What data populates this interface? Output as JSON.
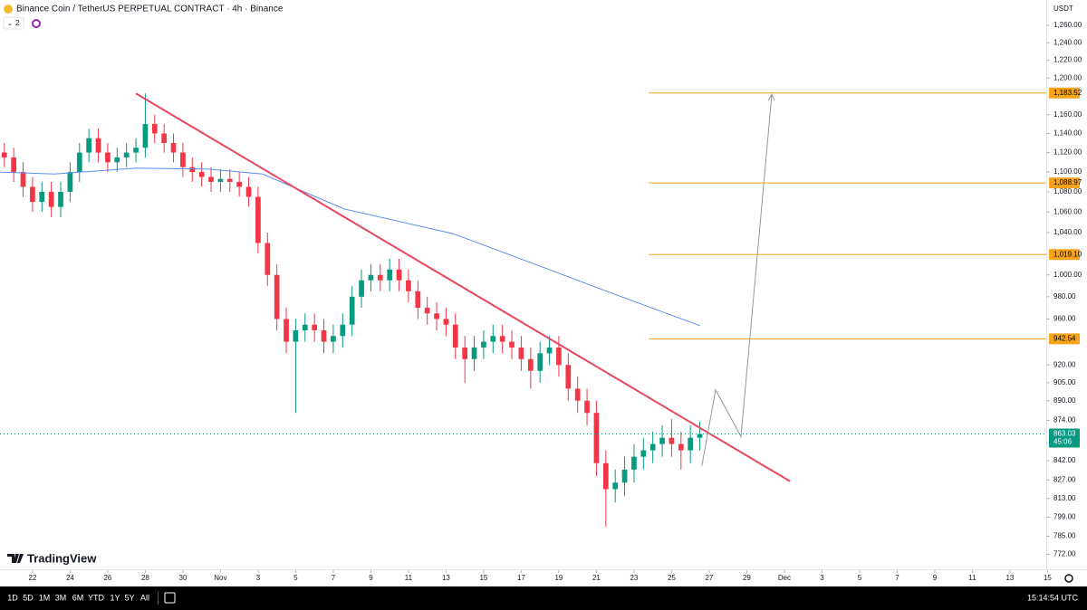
{
  "header": {
    "title": "Binance Coin / TetherUS PERPETUAL CONTRACT · 4h · Binance",
    "indicators": "2"
  },
  "logo": "TradingView",
  "toolbar": {
    "ranges": [
      "1D",
      "5D",
      "1M",
      "3M",
      "6M",
      "YTD",
      "1Y",
      "5Y",
      "All"
    ],
    "time": "15:14:54 UTC"
  },
  "chart_data": {
    "type": "candlestick",
    "log_scale": true,
    "grid": false,
    "currency": "USDT",
    "up_color": "#089981",
    "down_color": "#f23645",
    "xlim": [
      -1.73,
      53.93
    ],
    "ylim": [
      1290,
      762
    ],
    "xticks": [
      {
        "value": 0,
        "label": "22"
      },
      {
        "value": 2,
        "label": "24"
      },
      {
        "value": 4,
        "label": "26"
      },
      {
        "value": 6,
        "label": "28"
      },
      {
        "value": 8,
        "label": "30"
      },
      {
        "value": 10,
        "label": "Nov"
      },
      {
        "value": 12,
        "label": "3"
      },
      {
        "value": 14,
        "label": "5"
      },
      {
        "value": 16,
        "label": "7"
      },
      {
        "value": 18,
        "label": "9"
      },
      {
        "value": 20,
        "label": "11"
      },
      {
        "value": 22,
        "label": "13"
      },
      {
        "value": 24,
        "label": "15"
      },
      {
        "value": 26,
        "label": "17"
      },
      {
        "value": 28,
        "label": "19"
      },
      {
        "value": 30,
        "label": "21"
      },
      {
        "value": 32,
        "label": "23"
      },
      {
        "value": 34,
        "label": "25"
      },
      {
        "value": 36,
        "label": "27"
      },
      {
        "value": 38,
        "label": "29"
      },
      {
        "value": 40,
        "label": "Dec"
      },
      {
        "value": 42,
        "label": "3"
      },
      {
        "value": 44,
        "label": "5"
      },
      {
        "value": 46,
        "label": "7"
      },
      {
        "value": 48,
        "label": "9"
      },
      {
        "value": 50,
        "label": "11"
      },
      {
        "value": 52,
        "label": "13"
      },
      {
        "value": 54,
        "label": "15"
      }
    ],
    "yticks": [
      {
        "value": 1260,
        "label": "1,260.00"
      },
      {
        "value": 1240,
        "label": "1,240.00"
      },
      {
        "value": 1220,
        "label": "1,220.00"
      },
      {
        "value": 1200,
        "label": "1,200.00"
      },
      {
        "value": 1160,
        "label": "1,160.00"
      },
      {
        "value": 1140,
        "label": "1,140.00"
      },
      {
        "value": 1120,
        "label": "1,120.00"
      },
      {
        "value": 1100,
        "label": "1,100.00"
      },
      {
        "value": 1080,
        "label": "1,080.00"
      },
      {
        "value": 1060,
        "label": "1,060.00"
      },
      {
        "value": 1040,
        "label": "1,040.00"
      },
      {
        "value": 1000,
        "label": "1,000.00"
      },
      {
        "value": 980,
        "label": "980.00"
      },
      {
        "value": 960,
        "label": "960.00"
      },
      {
        "value": 920,
        "label": "920.00"
      },
      {
        "value": 905,
        "label": "905.00"
      },
      {
        "value": 890,
        "label": "890.00"
      },
      {
        "value": 874,
        "label": "874.00"
      },
      {
        "value": 842,
        "label": "842.00"
      },
      {
        "value": 827,
        "label": "827.00"
      },
      {
        "value": 813,
        "label": "813.00"
      },
      {
        "value": 799,
        "label": "799.00"
      },
      {
        "value": 785,
        "label": "785.00"
      },
      {
        "value": 772,
        "label": "772.00"
      }
    ],
    "x": [
      -1.5,
      -1,
      -0.5,
      0,
      0.5,
      1,
      1.5,
      2,
      2.5,
      3,
      3.5,
      4,
      4.5,
      5,
      5.5,
      6,
      6.5,
      7,
      7.5,
      8,
      8.5,
      9,
      9.5,
      10,
      10.5,
      11,
      11.5,
      12,
      12.5,
      13,
      13.5,
      14,
      14.5,
      15,
      15.5,
      16,
      16.5,
      17,
      17.5,
      18,
      18.5,
      19,
      19.5,
      20,
      20.5,
      21,
      21.5,
      22,
      22.5,
      23,
      23.5,
      24,
      24.5,
      25,
      25.5,
      26,
      26.5,
      27,
      27.5,
      28,
      28.5,
      29,
      29.5,
      30,
      30.5,
      31,
      31.5,
      32,
      32.5,
      33,
      33.5,
      34,
      34.5,
      35,
      35.5
    ],
    "open": [
      1120,
      1115,
      1100,
      1085,
      1070,
      1080,
      1065,
      1080,
      1100,
      1120,
      1135,
      1120,
      1110,
      1115,
      1120,
      1125,
      1150,
      1140,
      1130,
      1120,
      1105,
      1100,
      1095,
      1090,
      1093,
      1090,
      1085,
      1075,
      1030,
      1000,
      960,
      940,
      950,
      955,
      950,
      940,
      945,
      955,
      980,
      995,
      1000,
      995,
      1005,
      995,
      985,
      970,
      965,
      960,
      955,
      935,
      925,
      935,
      940,
      945,
      940,
      935,
      925,
      915,
      930,
      935,
      920,
      900,
      890,
      880,
      840,
      820,
      825,
      835,
      845,
      850,
      855,
      860,
      855,
      850,
      860
    ],
    "high": [
      1130,
      1125,
      1110,
      1095,
      1090,
      1090,
      1090,
      1110,
      1130,
      1145,
      1145,
      1130,
      1125,
      1130,
      1135,
      1183,
      1160,
      1150,
      1140,
      1130,
      1115,
      1110,
      1105,
      1103,
      1103,
      1100,
      1095,
      1085,
      1040,
      1010,
      970,
      960,
      965,
      965,
      960,
      955,
      965,
      990,
      1005,
      1010,
      1010,
      1015,
      1015,
      1005,
      995,
      980,
      975,
      970,
      965,
      945,
      945,
      950,
      955,
      955,
      950,
      945,
      935,
      940,
      945,
      945,
      930,
      910,
      900,
      890,
      850,
      835,
      845,
      855,
      860,
      865,
      870,
      875,
      865,
      870,
      873
    ],
    "low": [
      1105,
      1090,
      1075,
      1060,
      1060,
      1055,
      1055,
      1070,
      1090,
      1110,
      1110,
      1100,
      1100,
      1105,
      1110,
      1115,
      1130,
      1120,
      1110,
      1095,
      1090,
      1085,
      1080,
      1080,
      1080,
      1075,
      1065,
      1020,
      990,
      950,
      930,
      880,
      940,
      940,
      930,
      930,
      935,
      945,
      970,
      985,
      985,
      985,
      985,
      975,
      960,
      955,
      950,
      945,
      925,
      905,
      915,
      925,
      930,
      930,
      925,
      915,
      900,
      905,
      920,
      910,
      890,
      880,
      870,
      830,
      792,
      810,
      815,
      825,
      835,
      840,
      845,
      845,
      835,
      840,
      850
    ],
    "close": [
      1115,
      1100,
      1085,
      1070,
      1080,
      1065,
      1080,
      1100,
      1120,
      1135,
      1120,
      1110,
      1115,
      1120,
      1125,
      1150,
      1140,
      1130,
      1120,
      1105,
      1100,
      1095,
      1090,
      1093,
      1090,
      1085,
      1075,
      1030,
      1000,
      960,
      940,
      950,
      955,
      950,
      940,
      945,
      955,
      980,
      995,
      1000,
      995,
      1005,
      995,
      985,
      970,
      965,
      960,
      955,
      935,
      925,
      935,
      940,
      945,
      940,
      935,
      925,
      915,
      930,
      935,
      920,
      900,
      890,
      880,
      840,
      820,
      825,
      835,
      845,
      850,
      855,
      860,
      855,
      850,
      860,
      863
    ],
    "moving_average": {
      "color": "#5b8def",
      "x": [
        -1.73,
        1.16,
        5.49,
        9.35,
        12.24,
        16.58,
        22.36,
        27.18,
        30.07,
        35.52
      ],
      "values": [
        1100,
        1098,
        1104,
        1103,
        1098,
        1063,
        1039,
        1007,
        988,
        954
      ]
    },
    "trendline": {
      "color": "#e8475e",
      "x": [
        5.5,
        40.3
      ],
      "values": [
        1183,
        826
      ]
    },
    "projection": {
      "color": "#9598a1",
      "x": [
        35.61,
        36.34,
        37.69,
        39.33
      ],
      "values": [
        838,
        899,
        861,
        1182
      ]
    },
    "levels": {
      "color": "#f7a21b",
      "start": 32.8,
      "values": [
        942.54,
        1019.1,
        1088.97,
        1183.52
      ],
      "value_labels": [
        "942.54",
        "1,019.10",
        "1,088.97",
        "1,183.52"
      ]
    },
    "last_price": {
      "value": 863.03,
      "countdown": "45:06",
      "color": "#089981"
    }
  }
}
